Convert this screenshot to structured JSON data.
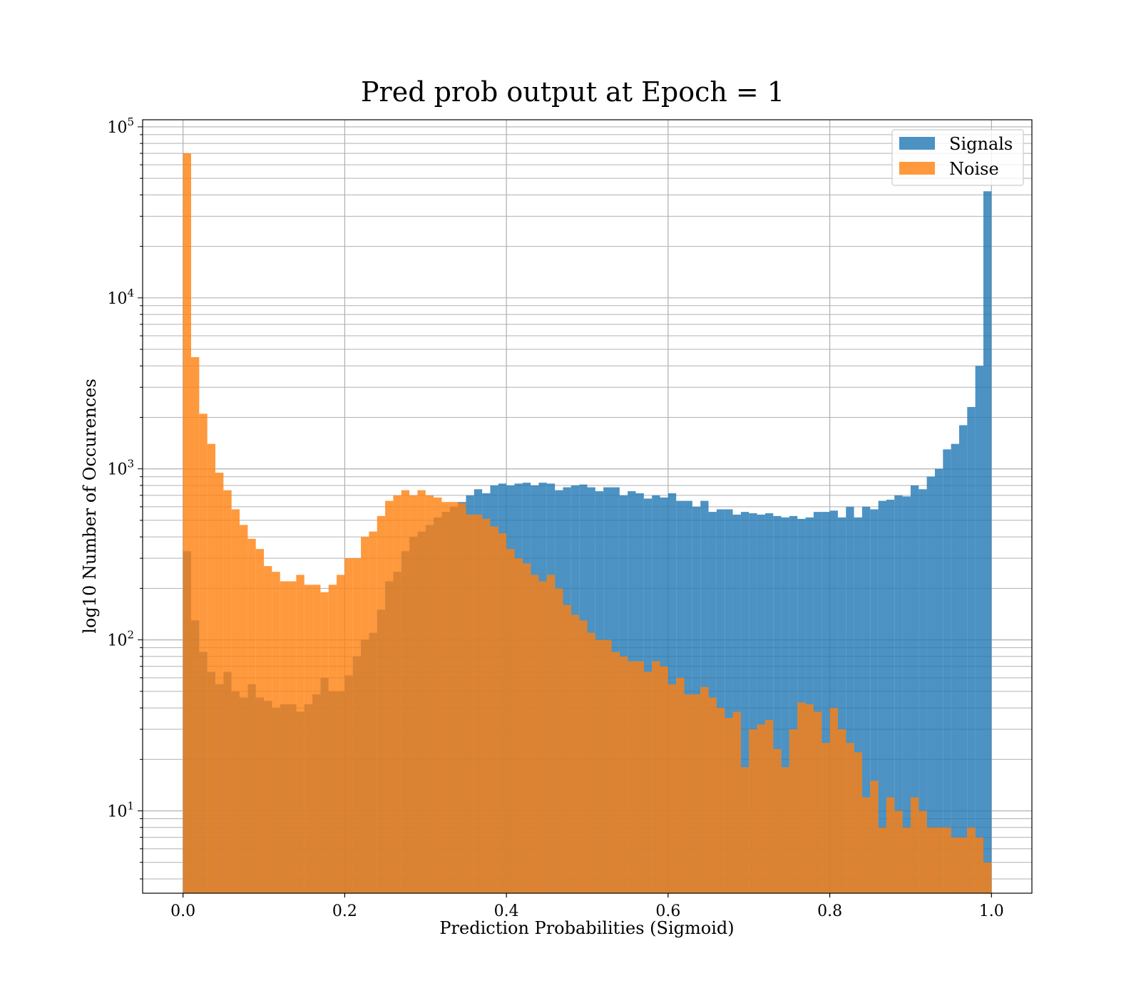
{
  "chart_data": {
    "type": "bar",
    "title": "Pred prob output at Epoch = 1",
    "xlabel": "Prediction Probabilities (Sigmoid)",
    "ylabel": "log10 Number of Occurences",
    "xlim": [
      -0.05,
      1.05
    ],
    "ylim": [
      3.3,
      110000
    ],
    "yscale": "log",
    "grid": true,
    "legend_position": "top-right",
    "x_ticks": [
      "0.0",
      "0.2",
      "0.4",
      "0.6",
      "0.8",
      "1.0"
    ],
    "x_tick_values": [
      0.0,
      0.2,
      0.4,
      0.6,
      0.8,
      1.0
    ],
    "y_ticks": [
      {
        "base": "10",
        "exp": "1",
        "value": 10
      },
      {
        "base": "10",
        "exp": "2",
        "value": 100
      },
      {
        "base": "10",
        "exp": "3",
        "value": 1000
      },
      {
        "base": "10",
        "exp": "4",
        "value": 10000
      },
      {
        "base": "10",
        "exp": "5",
        "value": 100000
      }
    ],
    "bin_start": 0.0,
    "bin_width": 0.01,
    "series": [
      {
        "name": "Signals",
        "color": "#1f77b4",
        "opacity": 0.8,
        "values": [
          330,
          130,
          85,
          65,
          55,
          65,
          50,
          46,
          55,
          46,
          44,
          40,
          42,
          42,
          38,
          42,
          48,
          60,
          50,
          50,
          62,
          80,
          100,
          110,
          150,
          220,
          250,
          330,
          400,
          430,
          470,
          520,
          560,
          600,
          640,
          700,
          760,
          720,
          800,
          820,
          800,
          820,
          830,
          800,
          830,
          820,
          750,
          780,
          800,
          810,
          780,
          740,
          780,
          780,
          700,
          740,
          720,
          670,
          700,
          680,
          720,
          650,
          650,
          600,
          650,
          560,
          580,
          580,
          540,
          560,
          550,
          540,
          550,
          530,
          520,
          530,
          510,
          520,
          560,
          560,
          570,
          520,
          600,
          520,
          600,
          580,
          650,
          660,
          700,
          690,
          800,
          760,
          900,
          1000,
          1300,
          1400,
          1800,
          2300,
          4000,
          42000
        ]
      },
      {
        "name": "Noise",
        "color": "#ff7f0e",
        "opacity": 0.8,
        "values": [
          70000,
          4500,
          2100,
          1400,
          950,
          750,
          580,
          470,
          390,
          340,
          270,
          250,
          220,
          220,
          240,
          210,
          210,
          190,
          210,
          240,
          300,
          300,
          400,
          430,
          530,
          650,
          700,
          750,
          700,
          750,
          700,
          680,
          640,
          640,
          630,
          540,
          540,
          510,
          460,
          420,
          340,
          300,
          280,
          240,
          220,
          240,
          200,
          160,
          140,
          130,
          110,
          100,
          100,
          85,
          80,
          75,
          75,
          65,
          75,
          70,
          55,
          60,
          48,
          48,
          53,
          46,
          40,
          35,
          38,
          18,
          30,
          32,
          34,
          23,
          18,
          30,
          43,
          42,
          38,
          25,
          40,
          30,
          25,
          22,
          12,
          15,
          8,
          12,
          10,
          8,
          12,
          10,
          8,
          8,
          8,
          7,
          7,
          8,
          7,
          5
        ]
      }
    ]
  }
}
